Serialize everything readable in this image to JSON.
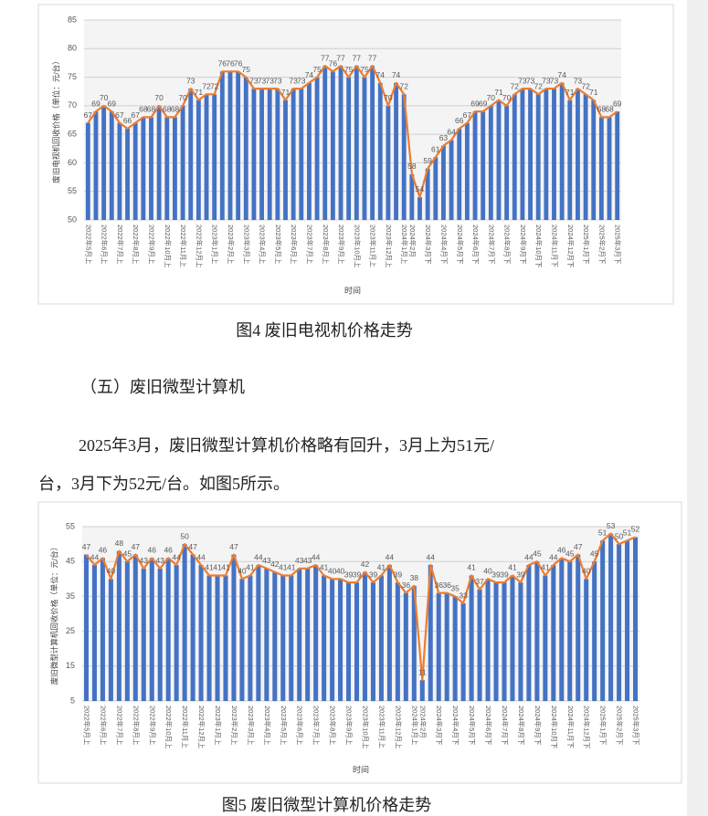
{
  "chart_data": [
    {
      "type": "bar_line",
      "title": "废旧电视机回收价格（单位：元/台）",
      "x_label": "时间",
      "bar_color": "#4472c4",
      "line_color": "#ed7d31",
      "grid": true,
      "ylim": [
        50,
        85
      ],
      "yticks": [
        50,
        55,
        60,
        65,
        70,
        75,
        80,
        85
      ],
      "categories": [
        "2022年5月上",
        null,
        "2022年6月上",
        null,
        "2022年7月上",
        null,
        "2022年8月上",
        null,
        "2022年9月上",
        null,
        "2022年10月上",
        null,
        "2022年11月上",
        null,
        "2022年12月上",
        null,
        "2023年1月上",
        null,
        "2023年2月上",
        null,
        "2023年3月上",
        null,
        "2023年4月上",
        null,
        "2023年5月上",
        null,
        "2023年6月上",
        null,
        "2023年7月上",
        null,
        "2023年8月上",
        null,
        "2023年9月上",
        null,
        "2023年10月上",
        null,
        "2023年11月上",
        null,
        "2023年12月上",
        null,
        "2024年1月上",
        "2024年2月",
        null,
        "2024年3月下",
        null,
        "2024年4月下",
        null,
        "2024年5月下",
        null,
        "2024年6月下",
        null,
        "2024年7月下",
        null,
        "2024年8月下",
        null,
        "2024年9月下",
        null,
        "2024年10月下",
        null,
        "2024年11月下",
        null,
        "2024年12月下",
        null,
        "2025年1月下",
        null,
        "2025年2月下",
        null,
        "2025年3月下"
      ],
      "values": [
        67,
        69,
        70,
        69,
        67,
        66,
        67,
        68,
        68,
        70,
        68,
        68,
        70,
        73,
        71,
        72,
        72,
        76,
        76,
        76,
        75,
        73,
        73,
        73,
        73,
        71,
        73,
        73,
        74,
        75,
        77,
        76,
        77,
        75,
        77,
        75,
        77,
        74,
        70,
        74,
        72,
        58,
        54,
        59,
        61,
        63,
        64,
        66,
        67,
        69,
        69,
        70,
        71,
        70,
        72,
        73,
        73,
        72,
        73,
        73,
        74,
        71,
        73,
        72,
        71,
        68,
        68,
        69
      ]
    },
    {
      "type": "bar_line",
      "title": "废旧微型计算机回收价格（单位：元/台）",
      "x_label": "时间",
      "bar_color": "#4472c4",
      "line_color": "#ed7d31",
      "grid": true,
      "ylim": [
        5,
        55
      ],
      "yticks": [
        5,
        15,
        25,
        35,
        45,
        55
      ],
      "categories": [
        "2022年5月上",
        null,
        "2022年6月上",
        null,
        "2022年7月上",
        null,
        "2022年8月上",
        null,
        "2022年9月上",
        null,
        "2022年10月上",
        null,
        "2022年11月上",
        null,
        "2022年12月上",
        null,
        "2023年1月上",
        null,
        "2023年2月上",
        null,
        "2023年3月上",
        null,
        "2023年4月上",
        null,
        "2023年5月上",
        null,
        "2023年6月上",
        null,
        "2023年7月上",
        null,
        "2023年8月上",
        null,
        "2023年9月上",
        null,
        "2023年10月上",
        null,
        "2023年11月上",
        null,
        "2023年12月上",
        null,
        "2024年1月上",
        "2024年2月",
        null,
        "2024年3月下",
        null,
        "2024年4月下",
        null,
        "2024年5月下",
        null,
        "2024年6月下",
        null,
        "2024年7月下",
        null,
        "2024年8月下",
        null,
        "2024年9月下",
        null,
        "2024年10月下",
        null,
        "2024年11月下",
        null,
        "2024年12月下",
        null,
        "2025年1月下",
        null,
        "2025年2月下",
        null,
        "2025年3月下"
      ],
      "values": [
        47,
        44,
        46,
        40,
        48,
        45,
        47,
        43,
        46,
        43,
        46,
        44,
        50,
        47,
        44,
        41,
        41,
        41,
        47,
        40,
        41,
        44,
        43,
        42,
        41,
        41,
        43,
        43,
        44,
        41,
        40,
        40,
        39,
        39,
        42,
        39,
        41,
        44,
        39,
        36,
        38,
        11,
        44,
        36,
        36,
        35,
        33,
        41,
        37,
        40,
        39,
        39,
        41,
        39,
        44,
        45,
        41,
        44,
        46,
        45,
        47,
        40,
        45,
        51,
        53,
        50,
        51,
        52
      ]
    }
  ],
  "captions": [
    "图4  废旧电视机价格走势",
    "图5  废旧微型计算机价格走势"
  ],
  "section_heading": "（五）废旧微型计算机",
  "paragraph": [
    "2025年3月，废旧微型计算机价格略有回升，3月上为51元/",
    "台，3月下为52元/台。如图5所示。"
  ]
}
